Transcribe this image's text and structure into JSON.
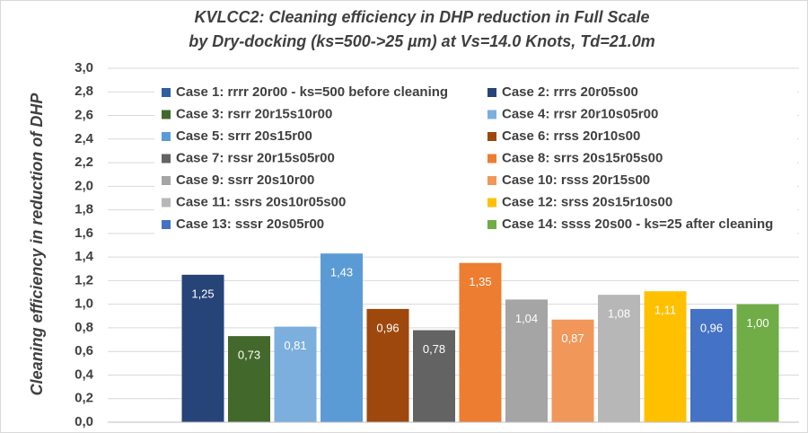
{
  "chart_data": {
    "type": "bar",
    "title": [
      "KVLCC2: Cleaning efficiency in DHP reduction in Full Scale",
      "by Dry-docking (ks=500->25 µm) at Vs=14.0 Knots, Td=21.0m"
    ],
    "y_label": "Cleaning efficiency in reduction of DHP",
    "categories": [
      null
    ],
    "series": [
      {
        "name": "Case 1: rrrr 20r00 - ks=500 before cleaning",
        "color": "#2e5f9e",
        "values": [
          null
        ]
      },
      {
        "name": "Case 2: rrrs 20r05s00",
        "color": "#264478",
        "values": [
          1.25
        ],
        "value_labels": [
          "1,25"
        ]
      },
      {
        "name": "Case 3: rsrr 20r15s10r00",
        "color": "#43682b",
        "values": [
          0.73
        ],
        "value_labels": [
          "0,73"
        ]
      },
      {
        "name": "Case 4: rrsr 20r10s05r00",
        "color": "#7cafdd",
        "values": [
          0.81
        ],
        "value_labels": [
          "0,81"
        ]
      },
      {
        "name": "Case 5: srrr 20s15r00",
        "color": "#5b9bd5",
        "values": [
          1.43
        ],
        "value_labels": [
          "1,43"
        ]
      },
      {
        "name": "Case 6: rrss 20r10s00",
        "color": "#9e480e",
        "values": [
          0.96
        ],
        "value_labels": [
          "0,96"
        ]
      },
      {
        "name": "Case 7: rssr 20r15s05r00",
        "color": "#636363",
        "values": [
          0.78
        ],
        "value_labels": [
          "0,78"
        ]
      },
      {
        "name": "Case 8: srrs 20s15r05s00",
        "color": "#ed7d31",
        "values": [
          1.35
        ],
        "value_labels": [
          "1,35"
        ]
      },
      {
        "name": "Case 9: ssrr 20s10r00",
        "color": "#a5a5a5",
        "values": [
          1.04
        ],
        "value_labels": [
          "1,04"
        ]
      },
      {
        "name": "Case 10: rsss 20r15s00",
        "color": "#f1975a",
        "values": [
          0.87
        ],
        "value_labels": [
          "0,87"
        ]
      },
      {
        "name": "Case 11: ssrs 20s10r05s00",
        "color": "#b7b7b7",
        "values": [
          1.08
        ],
        "value_labels": [
          "1,08"
        ]
      },
      {
        "name": "Case 12: srss 20s15r10s00",
        "color": "#ffc000",
        "values": [
          1.11
        ],
        "value_labels": [
          "1,11"
        ]
      },
      {
        "name": "Case 13: sssr 20s05r00",
        "color": "#4472c4",
        "values": [
          0.96
        ],
        "value_labels": [
          "0,96"
        ]
      },
      {
        "name": "Case 14: ssss 20s00 - ks=25 after cleaning",
        "color": "#70ad47",
        "values": [
          1.0
        ],
        "value_labels": [
          "1,00"
        ]
      }
    ],
    "ylim": [
      0,
      3
    ],
    "yticks": [
      {
        "value": 0,
        "label": "0,0"
      },
      {
        "value": 0.2,
        "label": "0,2"
      },
      {
        "value": 0.4,
        "label": "0,4"
      },
      {
        "value": 0.6,
        "label": "0,6"
      },
      {
        "value": 0.8,
        "label": "0,8"
      },
      {
        "value": 1,
        "label": "1,0"
      },
      {
        "value": 1.2,
        "label": "1,2"
      },
      {
        "value": 1.4,
        "label": "1,4"
      },
      {
        "value": 1.6,
        "label": "1,6"
      },
      {
        "value": 1.8,
        "label": "1,8"
      },
      {
        "value": 2,
        "label": "2,0"
      },
      {
        "value": 2.2,
        "label": "2,2"
      },
      {
        "value": 2.4,
        "label": "2,4"
      },
      {
        "value": 2.6,
        "label": "2,6"
      },
      {
        "value": 2.8,
        "label": "2,8"
      },
      {
        "value": 3,
        "label": "3,0"
      }
    ],
    "grid": true,
    "legend": "top"
  }
}
